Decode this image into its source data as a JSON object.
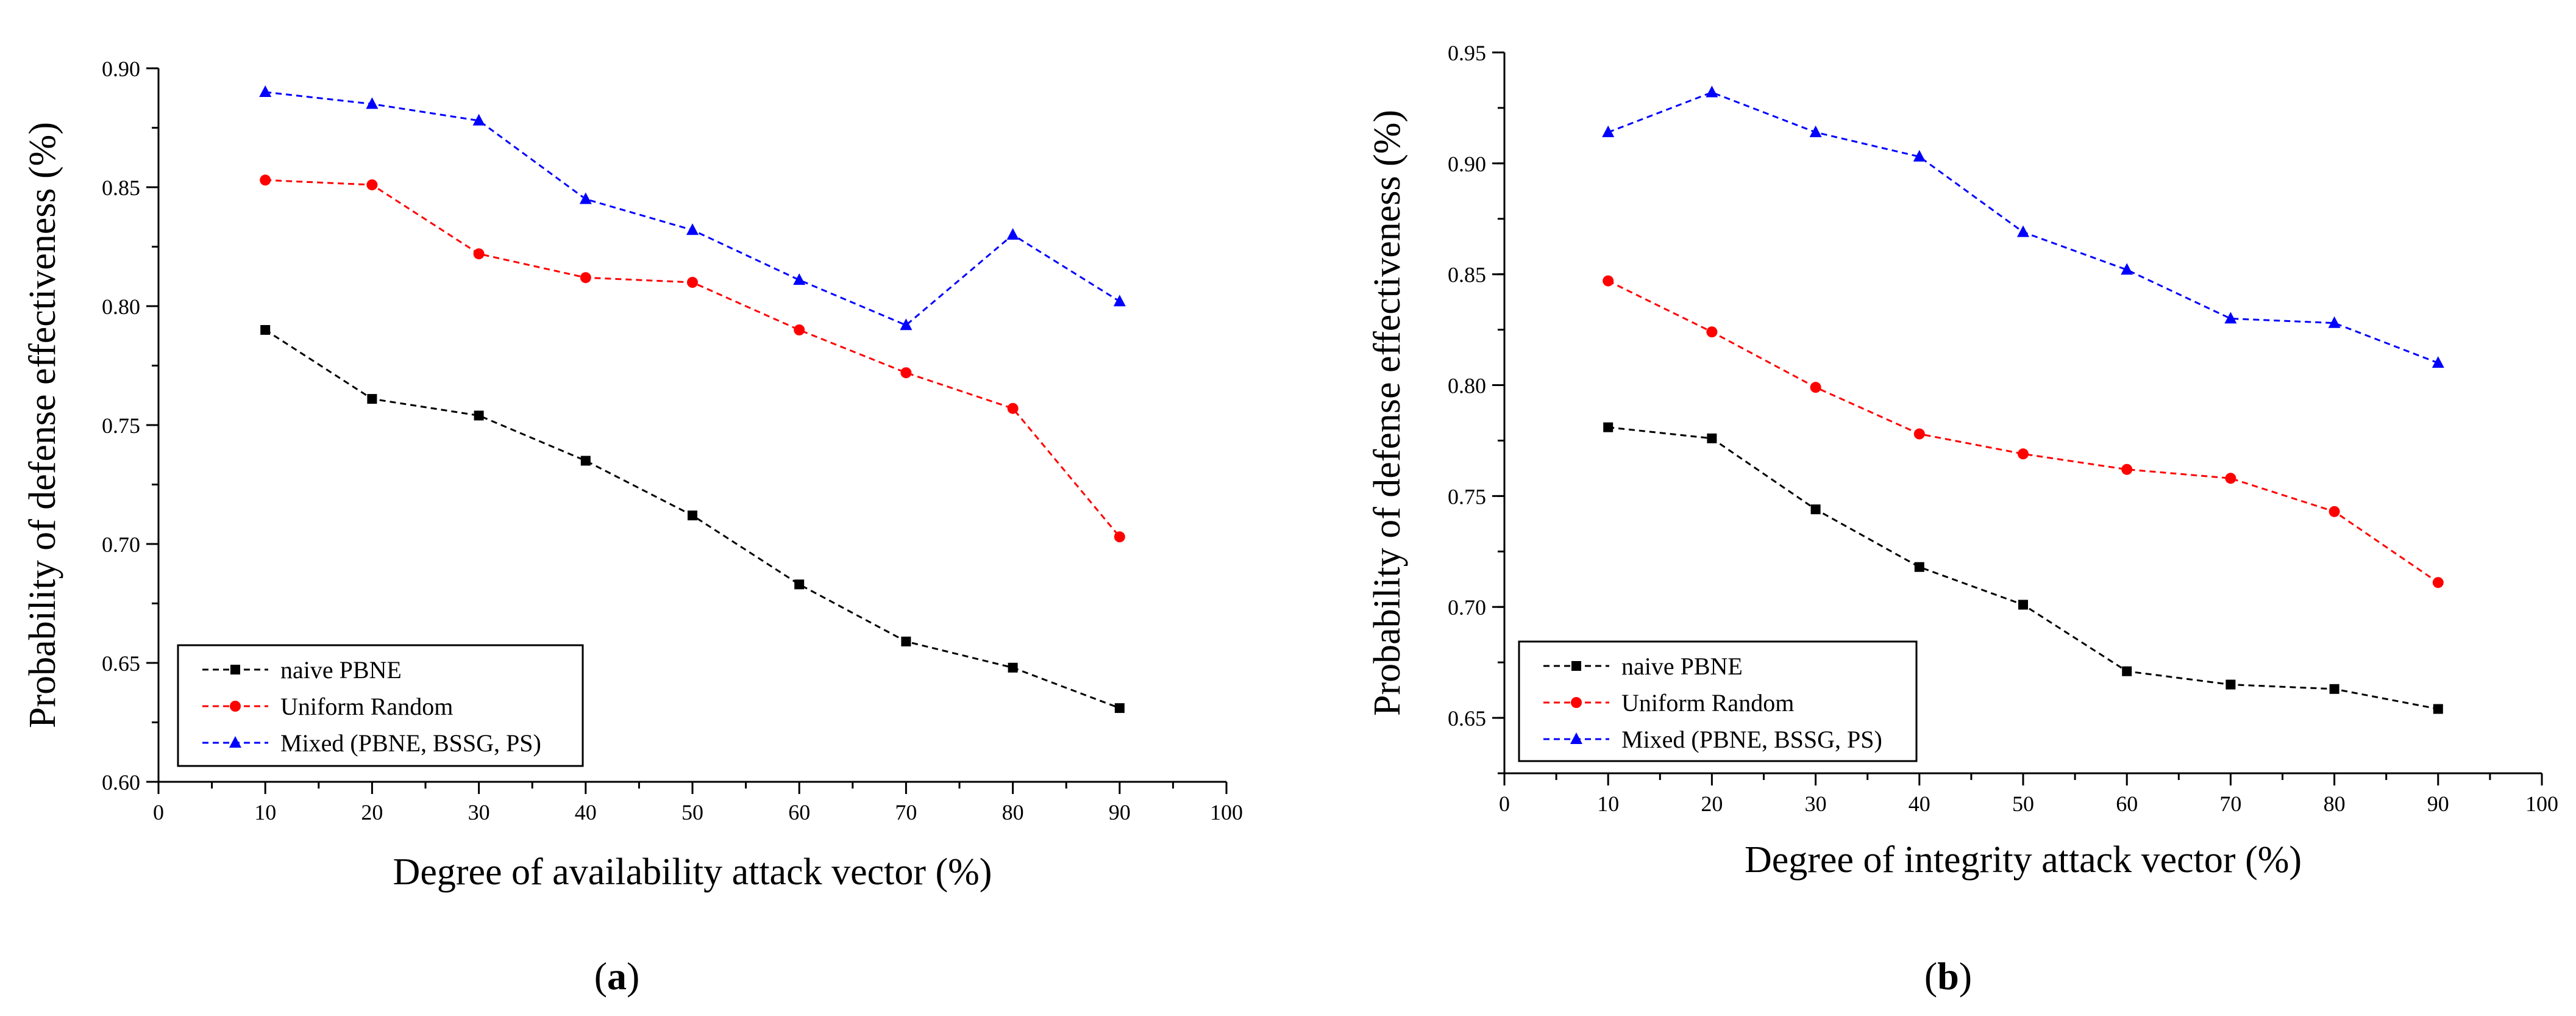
{
  "figure": {
    "panels": [
      "a",
      "b"
    ]
  },
  "colors": {
    "naive": "#000000",
    "uniform": "#ff0000",
    "mixed": "#0000ff"
  },
  "chart_data": [
    {
      "type": "line",
      "panel_label": "a",
      "title": "",
      "xlabel": "Degree of availability attack vector (%)",
      "ylabel": "Probability of defense effectiveness (%)",
      "xlim": [
        0,
        100
      ],
      "ylim": [
        0.6,
        0.9
      ],
      "x_ticks": [
        0,
        10,
        20,
        30,
        40,
        50,
        60,
        70,
        80,
        90,
        100
      ],
      "y_ticks": [
        "0.60",
        "0.65",
        "0.70",
        "0.75",
        "0.80",
        "0.85",
        "0.90"
      ],
      "x": [
        10,
        20,
        30,
        40,
        50,
        60,
        70,
        80,
        90
      ],
      "legend_position": "bottom-left",
      "series": [
        {
          "name": "naive PBNE",
          "color": "#000000",
          "marker": "square",
          "values": [
            0.79,
            0.761,
            0.754,
            0.735,
            0.712,
            0.683,
            0.659,
            0.648,
            0.631
          ]
        },
        {
          "name": "Uniform Random",
          "color": "#ff0000",
          "marker": "circle",
          "values": [
            0.853,
            0.851,
            0.822,
            0.812,
            0.81,
            0.79,
            0.772,
            0.757,
            0.703
          ]
        },
        {
          "name": "Mixed (PBNE, BSSG, PS)",
          "color": "#0000ff",
          "marker": "triangle",
          "values": [
            0.89,
            0.885,
            0.878,
            0.845,
            0.832,
            0.811,
            0.792,
            0.83,
            0.802
          ]
        }
      ]
    },
    {
      "type": "line",
      "panel_label": "b",
      "title": "",
      "xlabel": "Degree of integrity attack vector (%)",
      "ylabel": "Probability of defense effectiveness (%)",
      "xlim": [
        0,
        100
      ],
      "ylim": [
        0.625,
        0.95
      ],
      "x_ticks": [
        0,
        10,
        20,
        30,
        40,
        50,
        60,
        70,
        80,
        90,
        100
      ],
      "y_ticks": [
        "0.65",
        "0.70",
        "0.75",
        "0.80",
        "0.85",
        "0.90",
        "0.95"
      ],
      "x": [
        10,
        20,
        30,
        40,
        50,
        60,
        70,
        80,
        90
      ],
      "legend_position": "bottom-left",
      "series": [
        {
          "name": "naive PBNE",
          "color": "#000000",
          "marker": "square",
          "values": [
            0.781,
            0.776,
            0.744,
            0.718,
            0.701,
            0.671,
            0.665,
            0.663,
            0.654
          ]
        },
        {
          "name": "Uniform Random",
          "color": "#ff0000",
          "marker": "circle",
          "values": [
            0.847,
            0.824,
            0.799,
            0.778,
            0.769,
            0.762,
            0.758,
            0.743,
            0.711
          ]
        },
        {
          "name": "Mixed (PBNE, BSSG, PS)",
          "color": "#0000ff",
          "marker": "triangle",
          "values": [
            0.914,
            0.932,
            0.914,
            0.903,
            0.869,
            0.852,
            0.83,
            0.828,
            0.81
          ]
        }
      ]
    }
  ]
}
